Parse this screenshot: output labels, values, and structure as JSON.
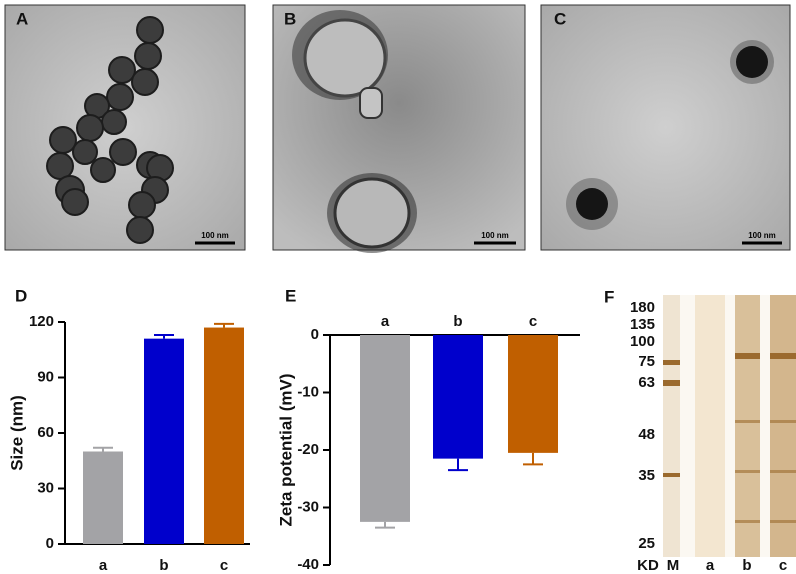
{
  "panels": {
    "labels": [
      "A",
      "B",
      "C",
      "D",
      "E",
      "F"
    ],
    "scale_bar": [
      "100 nm",
      "100 nm",
      "100 nm"
    ]
  },
  "chart_data": [
    {
      "type": "bar",
      "ylabel": "Size (nm)",
      "categories": [
        "a",
        "b",
        "c"
      ],
      "values": [
        50,
        111,
        117
      ],
      "errors": [
        2,
        2,
        2
      ],
      "colors": [
        "#a3a3a6",
        "#0000cc",
        "#c05f00"
      ],
      "ylim": [
        0,
        120
      ],
      "yticks": [
        0,
        30,
        60,
        90,
        120
      ],
      "category_axis": "bottom"
    },
    {
      "type": "bar",
      "ylabel": "Zeta potential (mV)",
      "categories": [
        "a",
        "b",
        "c"
      ],
      "values": [
        -32.5,
        -21.5,
        -20.5
      ],
      "errors": [
        1,
        2,
        2
      ],
      "colors": [
        "#a3a3a6",
        "#0000cc",
        "#c05f00"
      ],
      "ylim": [
        -40,
        0
      ],
      "yticks": [
        -40,
        -30,
        -20,
        -10,
        0
      ],
      "category_axis": "top"
    }
  ],
  "gel": {
    "unit": "KD",
    "markers": [
      180,
      135,
      100,
      75,
      63,
      48,
      35,
      25
    ],
    "lanes": [
      "M",
      "a",
      "b",
      "c"
    ]
  }
}
